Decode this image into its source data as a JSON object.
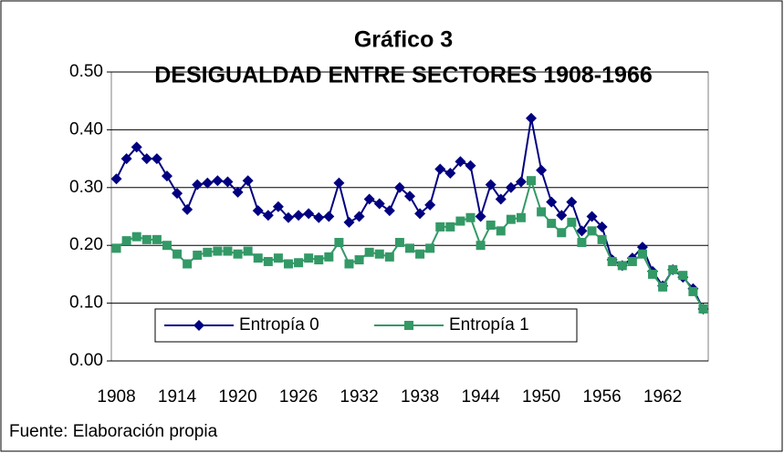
{
  "chart_data": {
    "type": "line",
    "title": "Gráfico 3",
    "subtitle": "DESIGUALDAD ENTRE SECTORES 1908-1966",
    "source": "Fuente: Elaboración propia",
    "categories": [
      "1908",
      null,
      null,
      null,
      null,
      null,
      "1914",
      null,
      null,
      null,
      null,
      null,
      "1920",
      null,
      null,
      null,
      null,
      null,
      "1926",
      null,
      null,
      null,
      null,
      null,
      "1932",
      null,
      null,
      null,
      null,
      null,
      "1938",
      null,
      null,
      null,
      null,
      null,
      "1944",
      null,
      null,
      null,
      null,
      null,
      "1950",
      null,
      null,
      null,
      null,
      null,
      "1956",
      null,
      null,
      null,
      null,
      null,
      "1962",
      null,
      null,
      null,
      null
    ],
    "series": [
      {
        "name": "Entropía 0",
        "color": "#000080",
        "marker": "diamond",
        "values": [
          0.315,
          0.35,
          0.37,
          0.35,
          0.35,
          0.32,
          0.29,
          0.262,
          0.305,
          0.308,
          0.312,
          0.31,
          0.292,
          0.312,
          0.26,
          0.252,
          0.267,
          0.248,
          0.252,
          0.255,
          0.248,
          0.25,
          0.308,
          0.24,
          0.25,
          0.28,
          0.272,
          0.26,
          0.3,
          0.285,
          0.255,
          0.27,
          0.332,
          0.325,
          0.345,
          0.338,
          0.25,
          0.305,
          0.28,
          0.3,
          0.31,
          0.42,
          0.33,
          0.275,
          0.252,
          0.275,
          0.225,
          0.25,
          0.232,
          0.175,
          0.165,
          0.178,
          0.197,
          0.155,
          0.13,
          0.158,
          0.145,
          0.125,
          0.09
        ]
      },
      {
        "name": "Entropía 1",
        "color": "#339966",
        "marker": "square",
        "values": [
          0.195,
          0.208,
          0.215,
          0.21,
          0.21,
          0.2,
          0.185,
          0.168,
          0.183,
          0.188,
          0.19,
          0.19,
          0.185,
          0.19,
          0.178,
          0.172,
          0.178,
          0.168,
          0.17,
          0.178,
          0.175,
          0.18,
          0.205,
          0.168,
          0.175,
          0.188,
          0.185,
          0.18,
          0.205,
          0.195,
          0.185,
          0.195,
          0.232,
          0.232,
          0.242,
          0.248,
          0.2,
          0.235,
          0.225,
          0.245,
          0.248,
          0.312,
          0.258,
          0.238,
          0.222,
          0.24,
          0.205,
          0.225,
          0.21,
          0.172,
          0.165,
          0.172,
          0.185,
          0.15,
          0.128,
          0.158,
          0.148,
          0.12,
          0.09
        ]
      }
    ],
    "ylim": [
      0,
      0.5
    ],
    "yticks": [
      {
        "value": 0,
        "label": "0.00"
      },
      {
        "value": 0.1,
        "label": "0.10"
      },
      {
        "value": 0.2,
        "label": "0.20"
      },
      {
        "value": 0.3,
        "label": "0.30"
      },
      {
        "value": 0.4,
        "label": "0.40"
      },
      {
        "value": 0.5,
        "label": "0.50"
      }
    ],
    "grid": true,
    "legend": "bottom-left"
  }
}
